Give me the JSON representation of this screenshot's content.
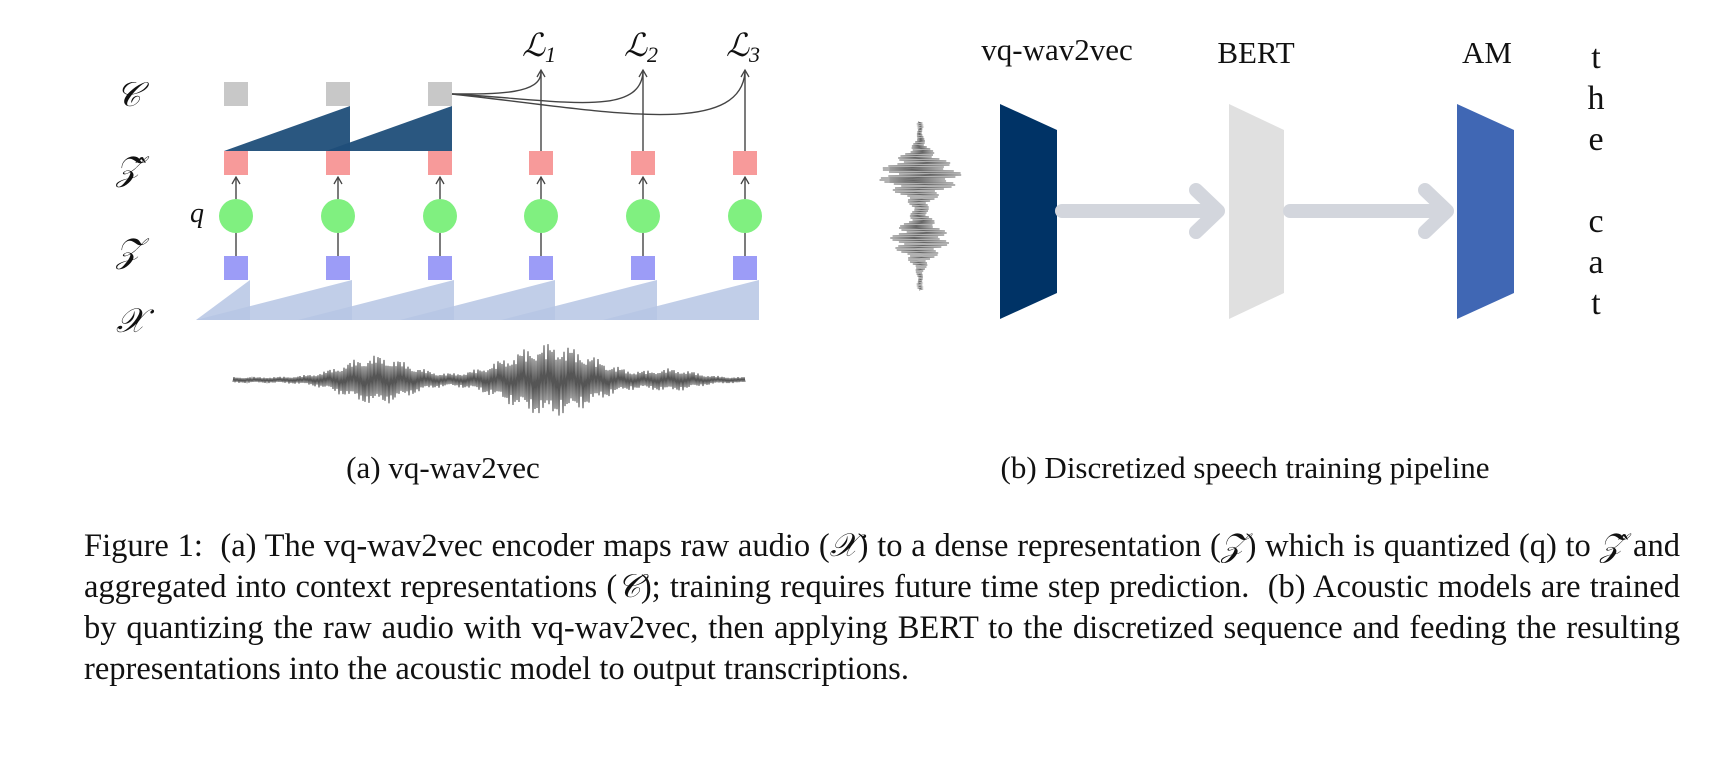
{
  "panel_a": {
    "row_labels": {
      "c": "𝒞",
      "zhat": "𝒵̂",
      "z": "𝒵",
      "x": "𝒳"
    },
    "q_label": "q",
    "losses": [
      {
        "base": "ℒ",
        "sub": "1"
      },
      {
        "base": "ℒ",
        "sub": "2"
      },
      {
        "base": "ℒ",
        "sub": "3"
      }
    ],
    "subcaption": "(a) vq-wav2vec",
    "colors": {
      "context_square": "#c8c8c8",
      "zhat_square": "#f79a9a",
      "z_square": "#9c9cf7",
      "quantizer_circle": "#80f080",
      "aggregator": "#1f4e79",
      "encoder_ramp": "#b6c6e4",
      "waveform": "#555555"
    }
  },
  "panel_b": {
    "stages": [
      {
        "label": "vq-wav2vec",
        "color": "#003366"
      },
      {
        "label": "BERT",
        "color": "#e0e0e0"
      },
      {
        "label": "AM",
        "color": "#4067b4"
      }
    ],
    "arrow_color": "#d3d6dd",
    "output_chars": [
      "t",
      "h",
      "e",
      "",
      "c",
      "a",
      "t"
    ],
    "subcaption": "(b) Discretized speech training pipeline"
  },
  "caption": {
    "s1": "Figure 1:  (a) The vq-wav2vec encoder maps raw audio (",
    "x": "𝒳",
    "s2": ") to a dense representation (",
    "z": "𝒵",
    "s3": ") which is quantized (q) to ",
    "zhat": "𝒵̂",
    "s4": " and aggregated into context representations (",
    "c": "𝒞",
    "s5": "); training requires future time step prediction.  (b) Acoustic models are trained by quantizing the raw audio with vq-wav2vec, then applying BERT to the discretized sequence and feeding the resulting representations into the acoustic model to output transcriptions."
  }
}
